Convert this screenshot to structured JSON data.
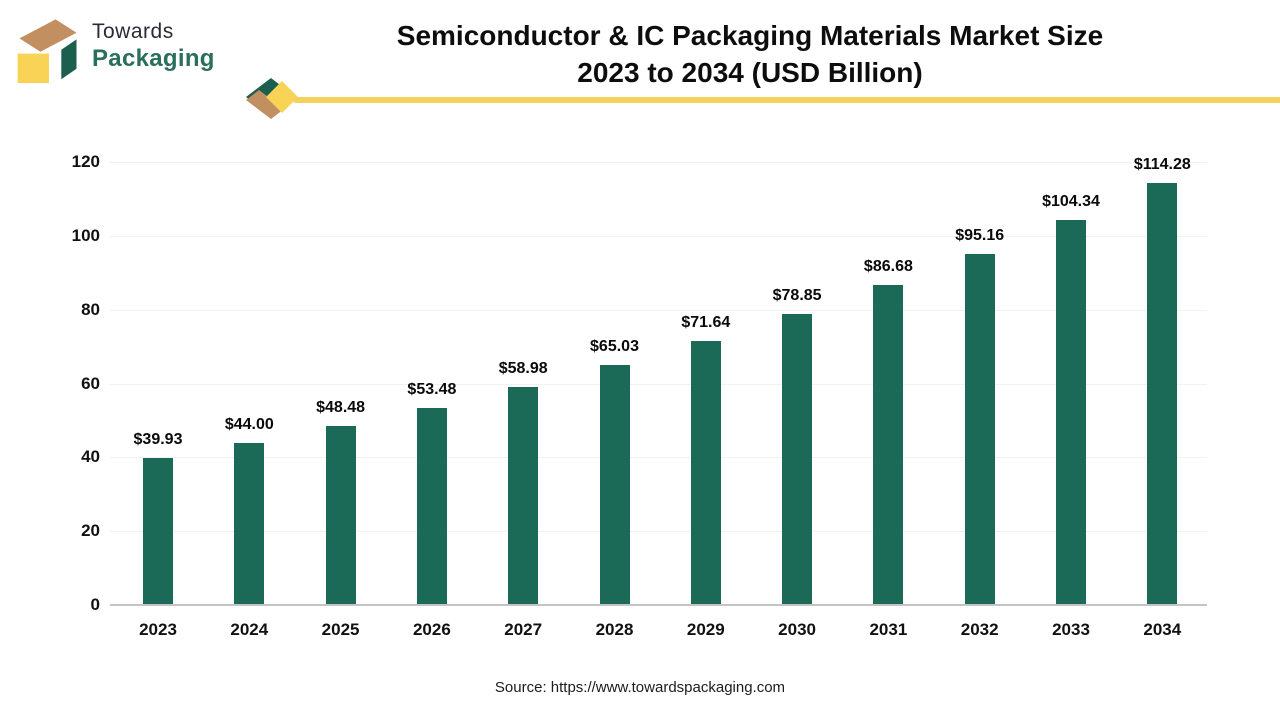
{
  "logo": {
    "line1": "Towards",
    "line2": "Packaging"
  },
  "title": {
    "line1": "Semiconductor & IC Packaging Materials Market Size",
    "line2": "2023 to 2034 (USD Billion)"
  },
  "source": "Source: https://www.towardspackaging.com",
  "colors": {
    "bar": "#1a6a57",
    "logo_green": "#1d5f4e",
    "logo_tan": "#c18f60",
    "logo_yellow": "#f8d356",
    "logo_text_green": "#2a6e5c",
    "ribbon_yellow": "#f3d35b",
    "gridline": "#f1f1f1",
    "axis_line": "#c4c4c4"
  },
  "chart_data": {
    "type": "bar",
    "title": "Semiconductor & IC Packaging Materials Market Size 2023 to 2034 (USD Billion)",
    "categories": [
      "2023",
      "2024",
      "2025",
      "2026",
      "2027",
      "2028",
      "2029",
      "2030",
      "2031",
      "2032",
      "2033",
      "2034"
    ],
    "values": [
      39.93,
      44.0,
      48.48,
      53.48,
      58.98,
      65.03,
      71.64,
      78.85,
      86.68,
      95.16,
      104.34,
      114.28
    ],
    "value_labels": [
      "$39.93",
      "$44.00",
      "$48.48",
      "$53.48",
      "$58.98",
      "$65.03",
      "$71.64",
      "$78.85",
      "$86.68",
      "$95.16",
      "$104.34",
      "$114.28"
    ],
    "xlabel": "",
    "ylabel": "",
    "ylim": [
      0,
      120
    ],
    "yticks": [
      0,
      20,
      40,
      60,
      80,
      100,
      120
    ],
    "grid": true,
    "legend_position": "none"
  }
}
